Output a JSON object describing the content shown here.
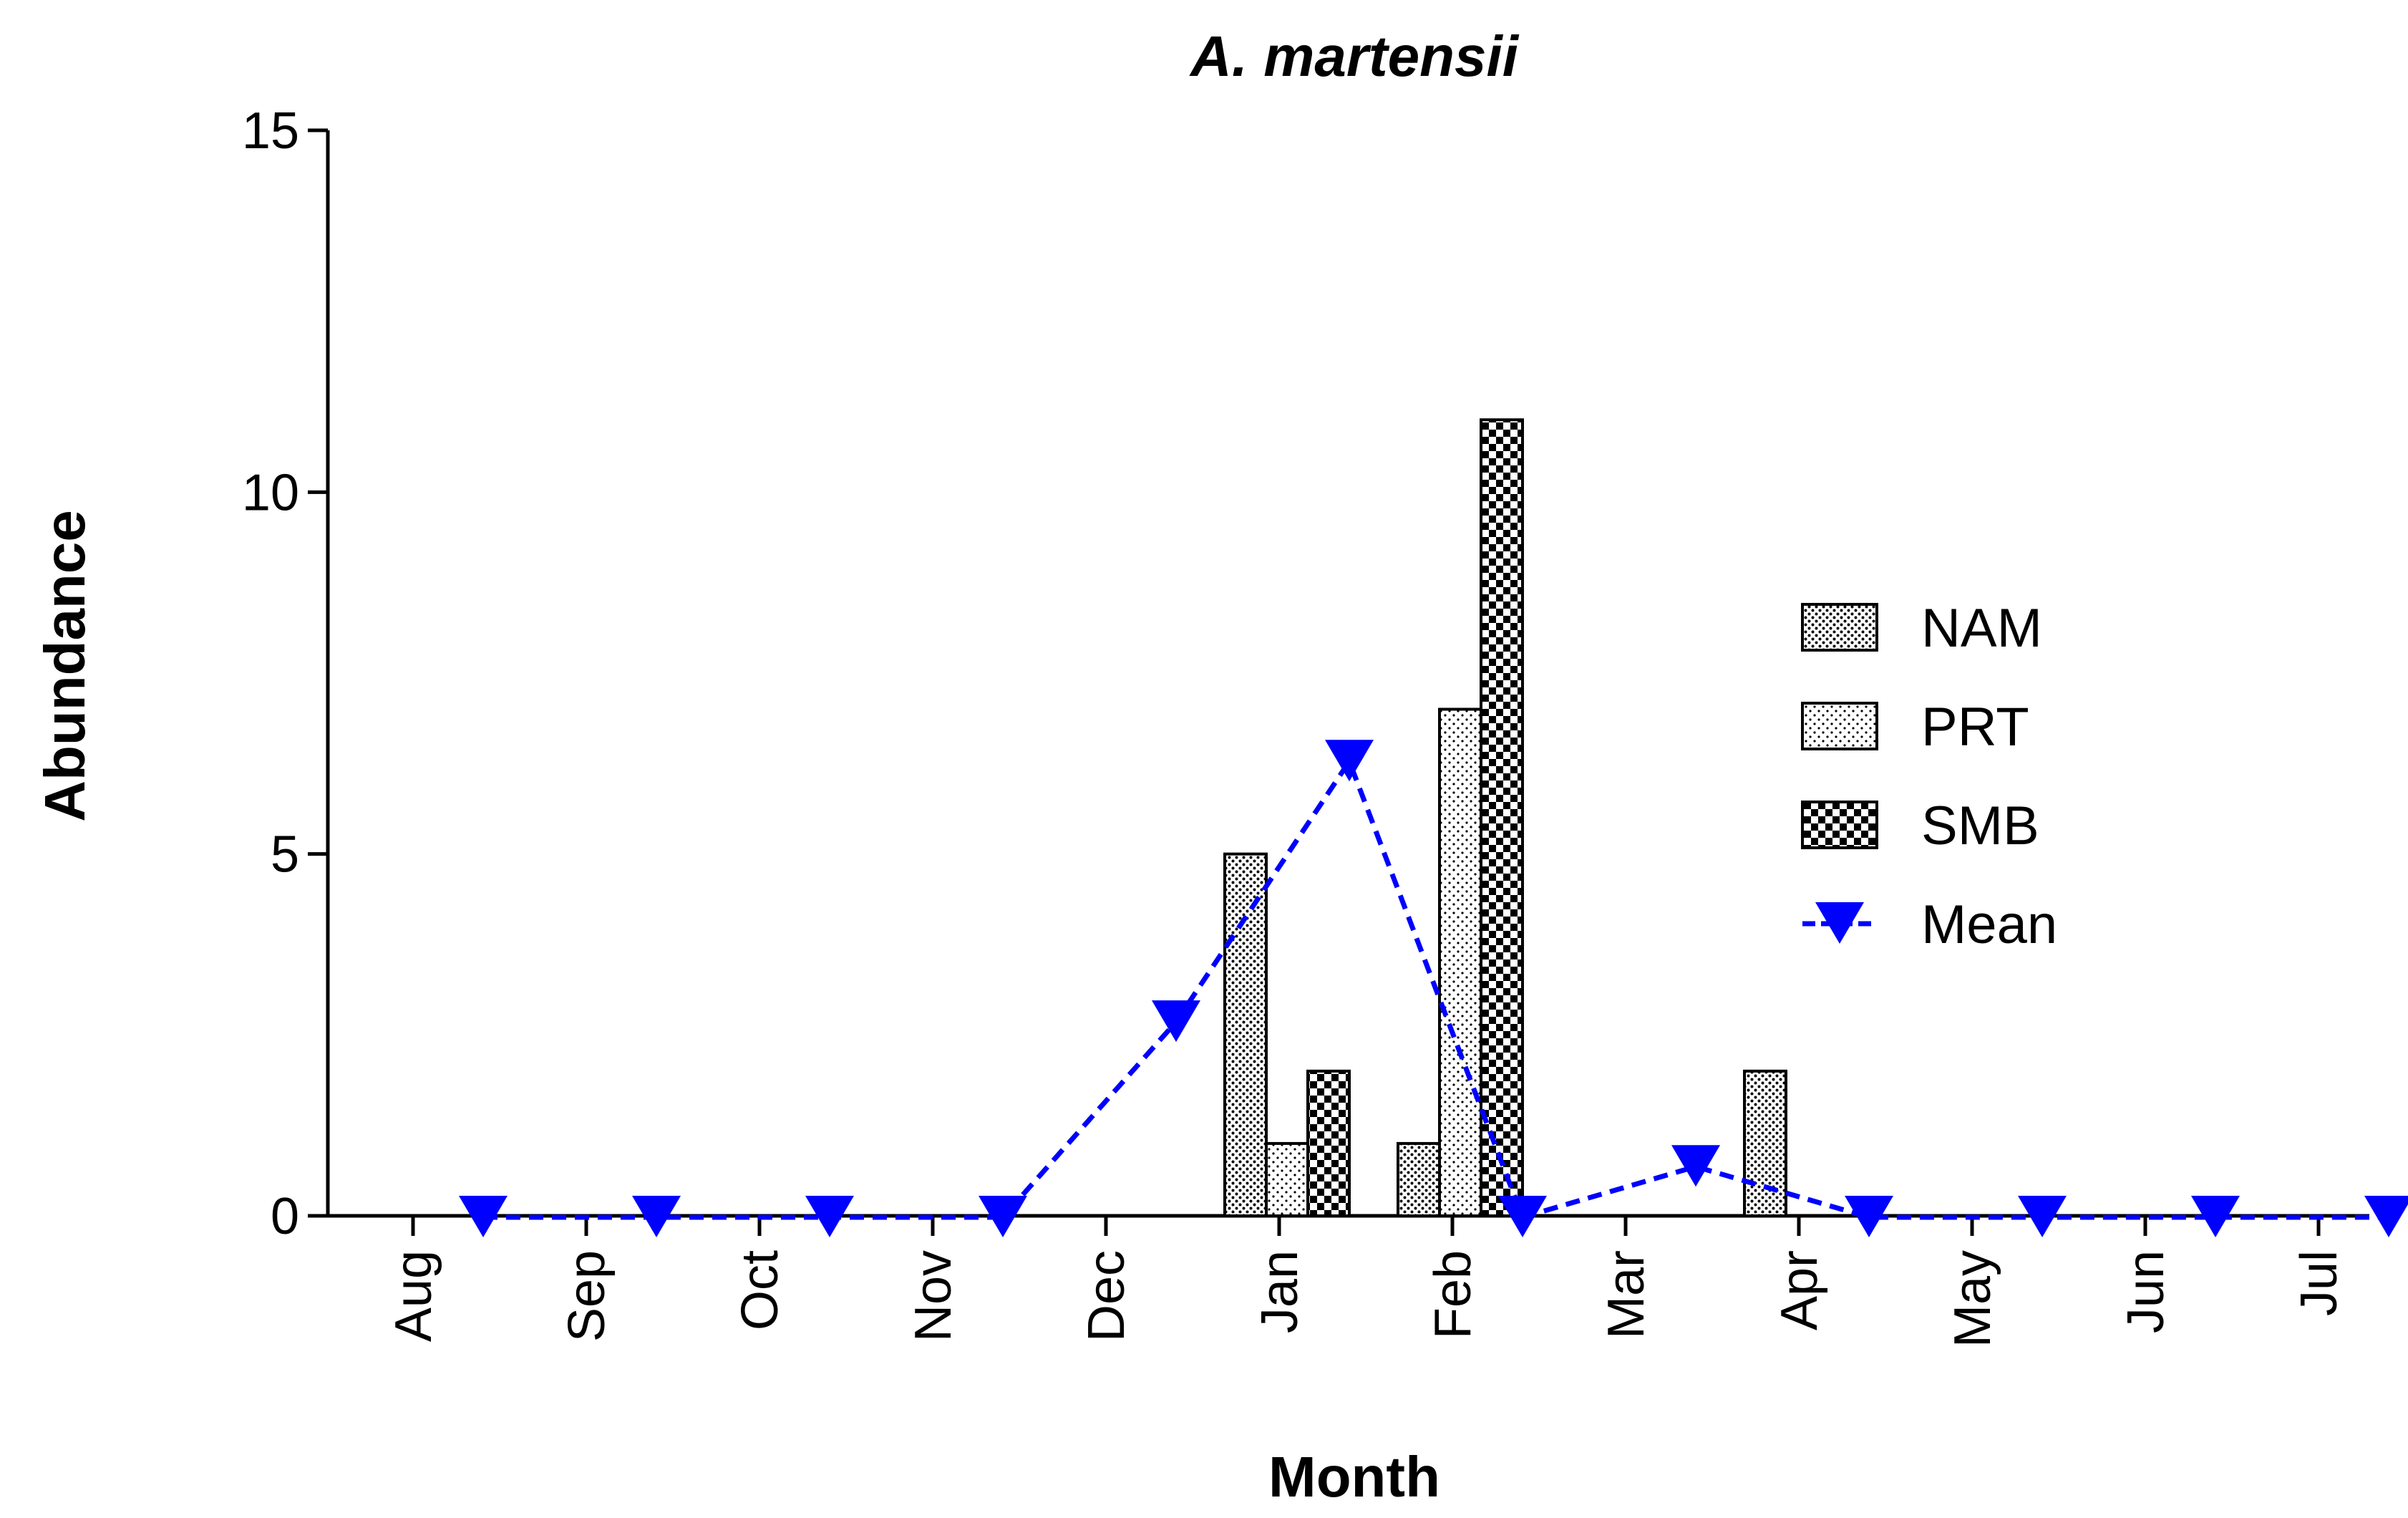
{
  "chart_data": {
    "type": "bar",
    "title": "A. martensii",
    "xlabel": "Month",
    "ylabel": "Abundance",
    "ylim": [
      0,
      15
    ],
    "yticks": [
      "0",
      "5",
      "10",
      "15"
    ],
    "categories": [
      "Aug",
      "Sep",
      "Oct",
      "Nov",
      "Dec",
      "Jan",
      "Feb",
      "Mar",
      "Apr",
      "May",
      "Jun",
      "Jul"
    ],
    "series": [
      {
        "name": "NAM",
        "kind": "bar",
        "pattern": "dense-dots",
        "values": [
          0,
          0,
          0,
          0,
          5,
          1,
          0,
          2,
          0,
          0,
          0,
          0
        ]
      },
      {
        "name": "PRT",
        "kind": "bar",
        "pattern": "sparse-dots",
        "values": [
          0,
          0,
          0,
          0,
          1,
          7,
          0,
          0,
          0,
          0,
          0,
          0
        ]
      },
      {
        "name": "SMB",
        "kind": "bar",
        "pattern": "checker",
        "values": [
          0,
          0,
          0,
          0,
          2,
          11,
          0,
          0,
          0,
          0,
          0,
          0
        ]
      },
      {
        "name": "Mean",
        "kind": "line",
        "marker": "triangle-down",
        "color": "#0000ff",
        "values": [
          0,
          0,
          0,
          0,
          2.7,
          6.3,
          0,
          0.7,
          0,
          0,
          0,
          0
        ]
      }
    ],
    "legend_position": "right",
    "grid": false
  }
}
